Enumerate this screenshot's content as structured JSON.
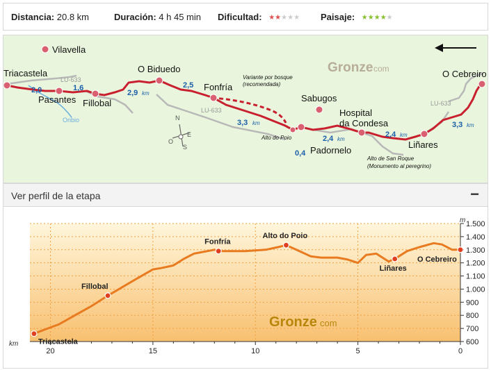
{
  "stats": {
    "distance_label": "Distancia:",
    "distance_value": "20.8 km",
    "duration_label": "Duración:",
    "duration_value": "4 h 45 min",
    "difficulty_label": "Dificultad:",
    "difficulty_level": 2,
    "difficulty_max": 5,
    "difficulty_color": "#e05050",
    "landscape_label": "Paisaje:",
    "landscape_level": 4,
    "landscape_max": 5,
    "landscape_color": "#88c030"
  },
  "map": {
    "watermark_main": "Gronze",
    "watermark_sub": "com",
    "places": {
      "triacastela": "Triacastela",
      "vilavella": "Vilavella",
      "pasantes": "Pasantes",
      "fillobal": "Fillobal",
      "o_biduedo": "O Biduedo",
      "fonfria": "Fonfría",
      "sabugos": "Sabugos",
      "hospital_1": "Hospital",
      "hospital_2": "da Condesa",
      "o_cebreiro": "O Cebreiro",
      "linares": "Liñares",
      "padornelo": "Padornelo",
      "alto_do_poio": "Alto do Poio",
      "alto_san_roque_1": "Alto de San Roque",
      "alto_san_roque_2": "(Monumento al peregrino)",
      "variante_1": "Variante por bosque",
      "variante_2": "(recomendada)",
      "oribio": "Oribio"
    },
    "roads": [
      "LU-633",
      "LU-633",
      "LU-633"
    ],
    "compass": {
      "n": "N",
      "o": "O",
      "e": "E",
      "s": "S"
    },
    "segments": [
      "2,0",
      "1,6",
      "2,9",
      "2,5",
      "3,3",
      "0,4",
      "2,4",
      "2,4",
      "3,3"
    ],
    "km_unit": "km",
    "colors": {
      "route": "#c8202e",
      "background": "#e9f5dc",
      "roads": "#b8b8b8",
      "river": "#6aaee0",
      "segment": "#1a5faa"
    }
  },
  "profile": {
    "header_title": "Ver perfil de la etapa",
    "toggle_symbol": "−",
    "watermark_main": "Gronze",
    "watermark_sub": "com",
    "y_unit": "m",
    "x_unit": "km",
    "y_ticks": [
      "1.500",
      "1.400",
      "1.300",
      "1.200",
      "1.100",
      "1.000",
      "900",
      "800",
      "700",
      "600"
    ],
    "x_ticks": [
      "20",
      "15",
      "10",
      "5",
      "0"
    ],
    "labels": {
      "triacastela": "Triacastela",
      "fillobal": "Fillobal",
      "fonfria": "Fonfría",
      "alto_do_poio": "Alto do Poio",
      "linares": "Liñares",
      "o_cebreiro": "O Cebreiro"
    }
  },
  "chart_data": {
    "type": "area",
    "x_reversed": true,
    "xlabel": "km",
    "ylabel": "m",
    "xlim": [
      0,
      21
    ],
    "ylim": [
      600,
      1500
    ],
    "x": [
      20.8,
      20.3,
      19.6,
      18.8,
      18.0,
      17.2,
      16.0,
      15.0,
      14.6,
      14.0,
      13.5,
      13.0,
      12.0,
      11.8,
      10.5,
      9.5,
      8.9,
      8.5,
      8.0,
      7.3,
      6.8,
      6.0,
      5.5,
      5.0,
      4.6,
      4.1,
      3.5,
      3.2,
      2.6,
      2.0,
      1.3,
      0.9,
      0.4,
      0.0
    ],
    "series": [
      {
        "values": [
          660,
          690,
          730,
          800,
          870,
          950,
          1060,
          1150,
          1160,
          1180,
          1230,
          1270,
          1300,
          1290,
          1290,
          1300,
          1320,
          1335,
          1300,
          1250,
          1240,
          1240,
          1225,
          1200,
          1260,
          1270,
          1210,
          1230,
          1290,
          1320,
          1350,
          1340,
          1300,
          1300
        ]
      }
    ],
    "annotations": [
      {
        "label": "Triacastela",
        "x": 20.8,
        "y": 660
      },
      {
        "label": "Fillobal",
        "x": 17.2,
        "y": 950
      },
      {
        "label": "Fonfría",
        "x": 11.8,
        "y": 1290
      },
      {
        "label": "Alto do Poio",
        "x": 8.5,
        "y": 1335
      },
      {
        "label": "Liñares",
        "x": 3.2,
        "y": 1230
      },
      {
        "label": "O Cebreiro",
        "x": 0.0,
        "y": 1300
      }
    ],
    "line_color": "#e87a20",
    "grid": true
  }
}
